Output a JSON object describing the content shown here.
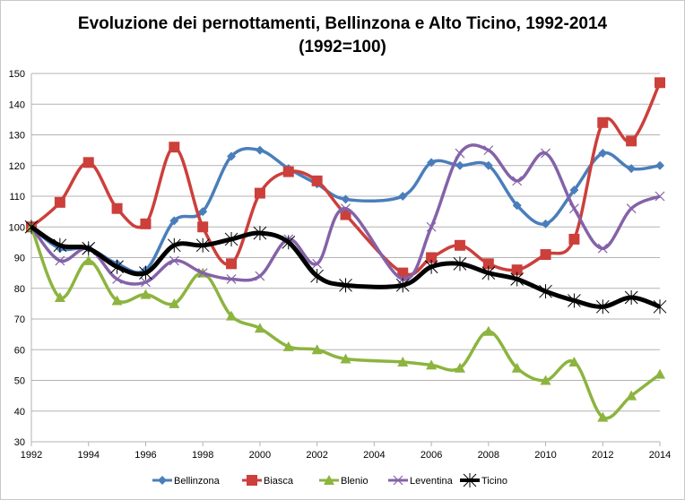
{
  "chart_data": {
    "type": "line",
    "title": "Evoluzione dei pernottamenti, Bellinzona e Alto Ticino, 1992-2014",
    "subtitle": "(1992=100)",
    "xlabel": "",
    "ylabel": "",
    "xlim": [
      1992,
      2014
    ],
    "ylim": [
      30,
      150
    ],
    "yticks": [
      30,
      40,
      50,
      60,
      70,
      80,
      90,
      100,
      110,
      120,
      130,
      140,
      150
    ],
    "xticks": [
      1992,
      1994,
      1996,
      1998,
      2000,
      2002,
      2004,
      2006,
      2008,
      2010,
      2012,
      2014
    ],
    "grid": true,
    "legend": "bottom",
    "x": [
      1992,
      1993,
      1994,
      1995,
      1996,
      1997,
      1998,
      1999,
      2000,
      2001,
      2002,
      2003,
      2005,
      2006,
      2007,
      2008,
      2009,
      2010,
      2011,
      2012,
      2013,
      2014
    ],
    "series": [
      {
        "name": "Bellinzona",
        "color": "#4a7ebb",
        "marker": "diamond",
        "values": [
          100,
          93,
          93,
          88,
          86,
          102,
          105,
          123,
          125,
          119,
          114,
          109,
          110,
          121,
          120,
          120,
          107,
          101,
          112,
          124,
          119,
          120
        ]
      },
      {
        "name": "Biasca",
        "color": "#cc3f3b",
        "marker": "square",
        "values": [
          100,
          108,
          121,
          106,
          101,
          126,
          100,
          88,
          111,
          118,
          115,
          104,
          85,
          90,
          94,
          88,
          86,
          91,
          96,
          134,
          128,
          147
        ]
      },
      {
        "name": "Blenio",
        "color": "#8cb43f",
        "marker": "triangle",
        "values": [
          100,
          77,
          89,
          76,
          78,
          75,
          85,
          71,
          67,
          61,
          60,
          57,
          56,
          55,
          54,
          66,
          54,
          50,
          56,
          38,
          45,
          52
        ]
      },
      {
        "name": "Leventina",
        "color": "#8462a8",
        "marker": "x",
        "values": [
          100,
          89,
          93,
          83,
          82,
          89,
          85,
          83,
          84,
          96,
          88,
          106,
          83,
          100,
          124,
          125,
          115,
          124,
          106,
          93,
          106,
          110
        ]
      },
      {
        "name": "Ticino",
        "color": "#000000",
        "marker": "star",
        "values": [
          100,
          94,
          93,
          87,
          85,
          94,
          94,
          96,
          98,
          95,
          84,
          81,
          81,
          87,
          88,
          85,
          83,
          79,
          76,
          74,
          77,
          74
        ]
      }
    ]
  }
}
